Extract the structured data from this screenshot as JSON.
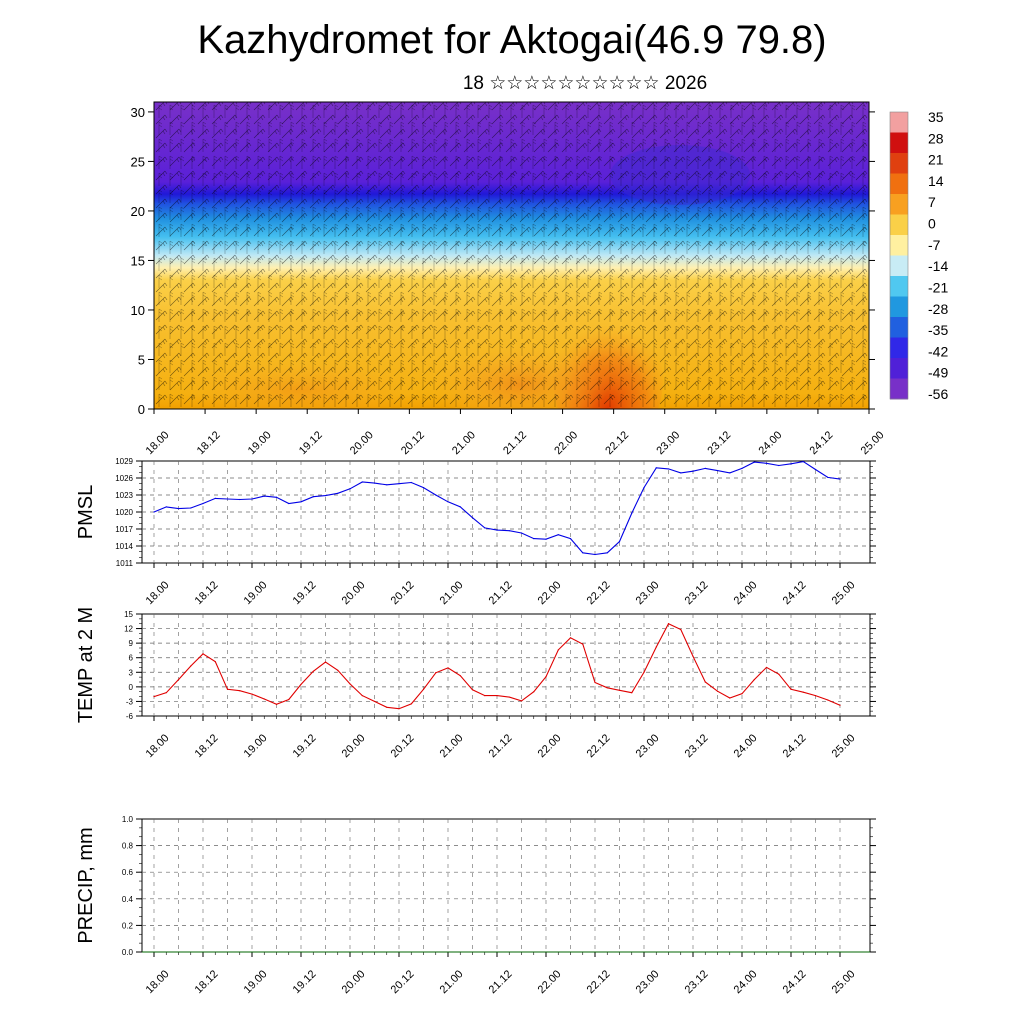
{
  "header": {
    "title": "Kazhydromet for Aktogai(46.9 79.8)",
    "subtitle": "18 ☆☆☆☆☆☆☆☆☆☆ 2026"
  },
  "chart_data": [
    {
      "type": "heatmap",
      "name": "cross-section",
      "description_ylabel": "",
      "ylim": [
        0,
        31
      ],
      "yticks": [
        0,
        5,
        10,
        15,
        20,
        25,
        30
      ],
      "xtick_labels": [
        "18.00",
        "18.12",
        "19.00",
        "19.12",
        "20.00",
        "20.12",
        "21.00",
        "21.12",
        "22.00",
        "22.12",
        "23.00",
        "23.12",
        "24.00",
        "24.12",
        "25.00"
      ],
      "colorbar": {
        "labels": [
          "35",
          "28",
          "21",
          "14",
          "7",
          "0",
          "-7",
          "-14",
          "-21",
          "-28",
          "-35",
          "-42",
          "-49",
          "-56"
        ],
        "colors": [
          "#f2a0a0",
          "#d01010",
          "#e04010",
          "#f07010",
          "#f8a020",
          "#fad048",
          "#fff0a0",
          "#c8ecf5",
          "#50c8f0",
          "#2098e0",
          "#2060e0",
          "#3028e8",
          "#5020d8",
          "#7830c8"
        ]
      },
      "overlay": "wind barbs"
    },
    {
      "type": "line",
      "name": "pmsl",
      "ylabel": "PMSL",
      "ylim": [
        1011,
        1029
      ],
      "yticks": [
        1011,
        1014,
        1017,
        1020,
        1023,
        1026,
        1029
      ],
      "color": "#0000e6",
      "x_labels": [
        "18.00",
        "18.12",
        "19.00",
        "19.12",
        "20.00",
        "20.12",
        "21.00",
        "21.12",
        "22.00",
        "22.12",
        "23.00",
        "23.12",
        "24.00",
        "24.12",
        "25.00"
      ],
      "x_hours": [
        0,
        3,
        6,
        9,
        12,
        15,
        18,
        21,
        24,
        27,
        30,
        33,
        36,
        39,
        42,
        45,
        48,
        51,
        54,
        57,
        60,
        63,
        66,
        69,
        72,
        75,
        78,
        81,
        84,
        87,
        90,
        93,
        96,
        99,
        102,
        105,
        108,
        111,
        114,
        117,
        120,
        123,
        126,
        129,
        132,
        135,
        138,
        141,
        144,
        147,
        150,
        153,
        156,
        159,
        162,
        165,
        168
      ],
      "values": [
        1020.0,
        1020.9,
        1020.6,
        1020.7,
        1021.5,
        1022.4,
        1022.3,
        1022.2,
        1022.3,
        1022.8,
        1022.6,
        1021.5,
        1021.8,
        1022.7,
        1022.9,
        1023.3,
        1024.1,
        1025.3,
        1025.1,
        1024.8,
        1025.0,
        1025.2,
        1024.3,
        1023.0,
        1021.8,
        1020.9,
        1019.0,
        1017.2,
        1016.8,
        1016.7,
        1016.3,
        1015.3,
        1015.2,
        1016.0,
        1015.3,
        1012.8,
        1012.5,
        1012.8,
        1014.8,
        1019.8,
        1024.3,
        1027.8,
        1027.6,
        1026.9,
        1027.2,
        1027.7,
        1027.3,
        1026.9,
        1027.7,
        1028.8,
        1028.6,
        1028.2,
        1028.5,
        1028.9,
        1027.5,
        1026.1,
        1025.8
      ]
    },
    {
      "type": "line",
      "name": "temp",
      "ylabel": "TEMP at 2 M",
      "ylim": [
        -6,
        15
      ],
      "yticks": [
        -6,
        -3,
        0,
        3,
        6,
        9,
        12,
        15
      ],
      "color": "#e00000",
      "x_labels": [
        "18.00",
        "18.12",
        "19.00",
        "19.12",
        "20.00",
        "20.12",
        "21.00",
        "21.12",
        "22.00",
        "22.12",
        "23.00",
        "23.12",
        "24.00",
        "24.12",
        "25.00"
      ],
      "x_hours": [
        0,
        3,
        6,
        9,
        12,
        15,
        18,
        21,
        24,
        27,
        30,
        33,
        36,
        39,
        42,
        45,
        48,
        51,
        54,
        57,
        60,
        63,
        66,
        69,
        72,
        75,
        78,
        81,
        84,
        87,
        90,
        93,
        96,
        99,
        102,
        105,
        108,
        111,
        114,
        117,
        120,
        123,
        126,
        129,
        132,
        135,
        138,
        141,
        144,
        147,
        150,
        153,
        156,
        159,
        162,
        165,
        168
      ],
      "values": [
        -2.0,
        -1.2,
        1.5,
        4.3,
        6.8,
        5.2,
        -0.5,
        -0.8,
        -1.5,
        -2.5,
        -3.6,
        -2.6,
        0.5,
        3.2,
        5.1,
        3.4,
        0.6,
        -1.8,
        -3.0,
        -4.2,
        -4.5,
        -3.5,
        -0.5,
        2.9,
        3.9,
        2.3,
        -0.6,
        -1.8,
        -1.8,
        -2.1,
        -2.9,
        -1.0,
        2.1,
        7.6,
        10.1,
        8.8,
        0.9,
        -0.2,
        -0.7,
        -1.2,
        3.0,
        8.2,
        13.0,
        11.8,
        6.3,
        1.0,
        -0.9,
        -2.3,
        -1.4,
        1.5,
        4.0,
        2.6,
        -0.5,
        -1.1,
        -1.8,
        -2.7,
        -3.8
      ]
    },
    {
      "type": "line",
      "name": "precip",
      "ylabel": "PRECIP, mm",
      "ylim": [
        0.0,
        1.0
      ],
      "yticks": [
        0.0,
        0.2,
        0.4,
        0.6,
        0.8,
        1.0
      ],
      "ytick_labels": [
        "0.0",
        "0.2",
        "0.4",
        "0.6",
        "0.8",
        "1.0"
      ],
      "color": "#006400",
      "x_labels": [
        "18.00",
        "18.12",
        "19.00",
        "19.12",
        "20.00",
        "20.12",
        "21.00",
        "21.12",
        "22.00",
        "22.12",
        "23.00",
        "23.12",
        "24.00",
        "24.12",
        "25.00"
      ],
      "x_hours": [
        0,
        168
      ],
      "values": [
        0.0,
        0.0
      ]
    }
  ]
}
